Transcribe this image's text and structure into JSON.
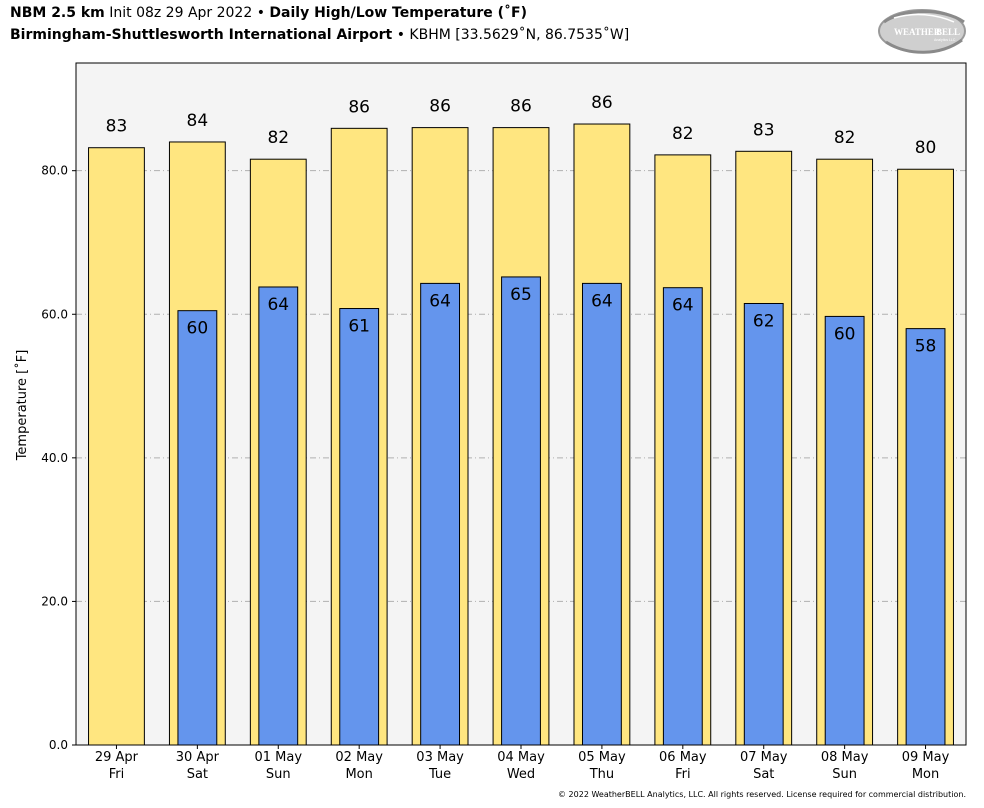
{
  "header": {
    "model": "NBM 2.5 km",
    "init": "Init 08z 29 Apr 2022",
    "bullet": "•",
    "product": "Daily High/Low Temperature (˚F)",
    "station_name": "Birmingham-Shuttlesworth International Airport",
    "station_id": "KBHM [33.5629˚N, 86.7535˚W]"
  },
  "logo": {
    "text_weather": "WEATHER",
    "text_bell": "BELL",
    "sub": "Analytics LLC"
  },
  "footer": {
    "copyright": "© 2022 WeatherBELL Analytics, LLC. All rights reserved. License required for commercial distribution."
  },
  "colors": {
    "high": "#FFE680",
    "low": "#6495ED",
    "plot_bg": "#F4F4F4",
    "grid": "#B0B0B0"
  },
  "chart_data": {
    "type": "bar",
    "ylabel": "Temperature [˚F]",
    "ylim": [
      0,
      95
    ],
    "yticks": [
      0.0,
      20.0,
      40.0,
      60.0,
      80.0
    ],
    "ytick_labels": [
      "0.0",
      "20.0",
      "40.0",
      "60.0",
      "80.0"
    ],
    "grid": "horizontal dashed",
    "categories": [
      [
        "29 Apr",
        "Fri"
      ],
      [
        "30 Apr",
        "Sat"
      ],
      [
        "01 May",
        "Sun"
      ],
      [
        "02 May",
        "Mon"
      ],
      [
        "03 May",
        "Tue"
      ],
      [
        "04 May",
        "Wed"
      ],
      [
        "05 May",
        "Thu"
      ],
      [
        "06 May",
        "Fri"
      ],
      [
        "07 May",
        "Sat"
      ],
      [
        "08 May",
        "Sun"
      ],
      [
        "09 May",
        "Mon"
      ]
    ],
    "series": [
      {
        "role": "high",
        "values": [
          83.2,
          84.0,
          81.6,
          85.9,
          86.0,
          86.0,
          86.5,
          82.2,
          82.7,
          81.6,
          80.2
        ],
        "labels": [
          "83",
          "84",
          "82",
          "86",
          "86",
          "86",
          "86",
          "82",
          "83",
          "82",
          "80"
        ]
      },
      {
        "role": "low",
        "values": [
          null,
          60.5,
          63.8,
          60.8,
          64.3,
          65.2,
          64.3,
          63.7,
          61.5,
          59.7,
          58.0
        ],
        "labels": [
          "",
          "60",
          "64",
          "61",
          "64",
          "65",
          "64",
          "64",
          "62",
          "60",
          "58"
        ]
      }
    ]
  }
}
